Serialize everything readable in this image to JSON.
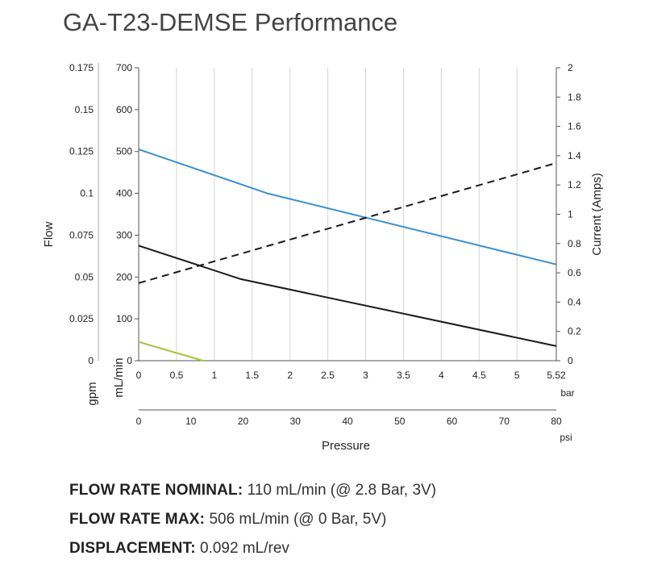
{
  "title": "GA-T23-DEMSE Performance",
  "chart_data": {
    "type": "line",
    "y_left_label": "Flow",
    "y_right_label": "Current (Amps)",
    "x_label": "Pressure",
    "axes": {
      "flow_gpm": {
        "unit": "gpm",
        "range": [
          0,
          0.175
        ],
        "ticks": [
          "0",
          "0.025",
          "0.05",
          "0.075",
          "0.1",
          "0.125",
          "0.15",
          "0.175"
        ]
      },
      "flow_ml": {
        "unit": "mL/min",
        "range": [
          0,
          700
        ],
        "ticks": [
          "0",
          "100",
          "200",
          "300",
          "400",
          "500",
          "600",
          "700"
        ]
      },
      "current": {
        "unit": "",
        "range": [
          0,
          2
        ],
        "ticks": [
          "0",
          "0.2",
          "0.4",
          "0.6",
          "0.8",
          "1",
          "1.2",
          "1.4",
          "1.6",
          "1.8",
          "2"
        ]
      },
      "pressure_bar": {
        "unit": "bar",
        "range": [
          0,
          5.52
        ],
        "ticks": [
          "0",
          "0.5",
          "1",
          "1.5",
          "2",
          "2.5",
          "3",
          "3.5",
          "4",
          "4.5",
          "5",
          "5.52"
        ]
      },
      "pressure_psi": {
        "unit": "psi",
        "range": [
          0,
          80
        ],
        "ticks": [
          "0",
          "10",
          "20",
          "30",
          "40",
          "50",
          "60",
          "70",
          "80"
        ]
      }
    },
    "grid": "vertical",
    "series": [
      {
        "style": "blue-solid",
        "color": "#3b8fd0",
        "axis": "mL/min",
        "x_bar": [
          0,
          1.7,
          5.52
        ],
        "y": [
          505,
          400,
          230
        ]
      },
      {
        "style": "black-solid",
        "color": "#1a1a1a",
        "axis": "mL/min",
        "x_bar": [
          0,
          1.35,
          5.52
        ],
        "y": [
          275,
          195,
          35
        ]
      },
      {
        "style": "green-solid",
        "color": "#9ac93a",
        "axis": "mL/min",
        "x_bar": [
          0,
          0.85
        ],
        "y": [
          45,
          0
        ]
      },
      {
        "style": "black-dashed",
        "color": "#1a1a1a",
        "axis": "Amps",
        "x_bar": [
          0,
          5.52
        ],
        "y": [
          0.53,
          1.35
        ]
      }
    ]
  },
  "specs": [
    {
      "key": "FLOW RATE NOMINAL:",
      "value": "110 mL/min (@ 2.8 Bar, 3V)"
    },
    {
      "key": "FLOW RATE MAX:",
      "value": "506 mL/min (@ 0 Bar, 5V)"
    },
    {
      "key": "DISPLACEMENT:",
      "value": "0.092 mL/rev"
    }
  ]
}
